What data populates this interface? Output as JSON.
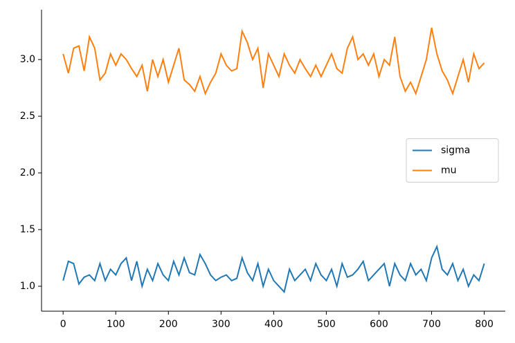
{
  "chart_data": {
    "type": "line",
    "x": [
      0,
      10,
      20,
      30,
      40,
      50,
      60,
      70,
      80,
      90,
      100,
      110,
      120,
      130,
      140,
      150,
      160,
      170,
      180,
      190,
      200,
      210,
      220,
      230,
      240,
      250,
      260,
      270,
      280,
      290,
      300,
      310,
      320,
      330,
      340,
      350,
      360,
      370,
      380,
      390,
      400,
      410,
      420,
      430,
      440,
      450,
      460,
      470,
      480,
      490,
      500,
      510,
      520,
      530,
      540,
      550,
      560,
      570,
      580,
      590,
      600,
      610,
      620,
      630,
      640,
      650,
      660,
      670,
      680,
      690,
      700,
      710,
      720,
      730,
      740,
      750,
      760,
      770,
      780,
      790,
      800
    ],
    "series": [
      {
        "name": "sigma",
        "color": "#1f77b4",
        "values": [
          1.05,
          1.22,
          1.2,
          1.02,
          1.08,
          1.1,
          1.05,
          1.2,
          1.05,
          1.15,
          1.1,
          1.2,
          1.25,
          1.05,
          1.22,
          1.0,
          1.15,
          1.05,
          1.2,
          1.1,
          1.05,
          1.22,
          1.1,
          1.25,
          1.12,
          1.1,
          1.28,
          1.2,
          1.1,
          1.05,
          1.08,
          1.1,
          1.05,
          1.07,
          1.25,
          1.12,
          1.05,
          1.2,
          1.0,
          1.15,
          1.05,
          1.0,
          0.95,
          1.15,
          1.05,
          1.1,
          1.15,
          1.05,
          1.2,
          1.1,
          1.05,
          1.15,
          1.0,
          1.2,
          1.08,
          1.1,
          1.15,
          1.22,
          1.05,
          1.1,
          1.15,
          1.2,
          1.0,
          1.2,
          1.1,
          1.05,
          1.2,
          1.1,
          1.15,
          1.05,
          1.25,
          1.35,
          1.15,
          1.1,
          1.2,
          1.05,
          1.15,
          1.0,
          1.1,
          1.05,
          1.2
        ]
      },
      {
        "name": "mu",
        "color": "#ff7f0e",
        "values": [
          3.05,
          2.88,
          3.1,
          3.12,
          2.9,
          3.2,
          3.1,
          2.82,
          2.88,
          3.05,
          2.95,
          3.05,
          3.0,
          2.92,
          2.85,
          2.95,
          2.72,
          3.0,
          2.85,
          3.0,
          2.8,
          2.95,
          3.1,
          2.82,
          2.78,
          2.72,
          2.85,
          2.7,
          2.8,
          2.88,
          3.05,
          2.95,
          2.9,
          2.92,
          3.25,
          3.15,
          3.0,
          3.1,
          2.75,
          3.05,
          2.95,
          2.85,
          3.05,
          2.95,
          2.88,
          3.0,
          2.92,
          2.85,
          2.95,
          2.85,
          2.95,
          3.05,
          2.92,
          2.88,
          3.1,
          3.2,
          3.0,
          3.05,
          2.95,
          3.05,
          2.85,
          3.0,
          2.95,
          3.2,
          2.85,
          2.72,
          2.8,
          2.7,
          2.85,
          3.0,
          3.28,
          3.05,
          2.9,
          2.82,
          2.7,
          2.85,
          3.0,
          2.8,
          3.05,
          2.92,
          2.97
        ]
      }
    ],
    "xlim": [
      -41,
      840
    ],
    "ylim": [
      0.78,
      3.44
    ],
    "xticks": [
      0,
      100,
      200,
      300,
      400,
      500,
      600,
      700,
      800
    ],
    "yticks": [
      {
        "value": 1,
        "label": "1.0"
      },
      1.5,
      {
        "value": 2,
        "label": "2.0"
      },
      2.5,
      {
        "value": 3,
        "label": "3.0"
      }
    ],
    "legend": "center right"
  }
}
